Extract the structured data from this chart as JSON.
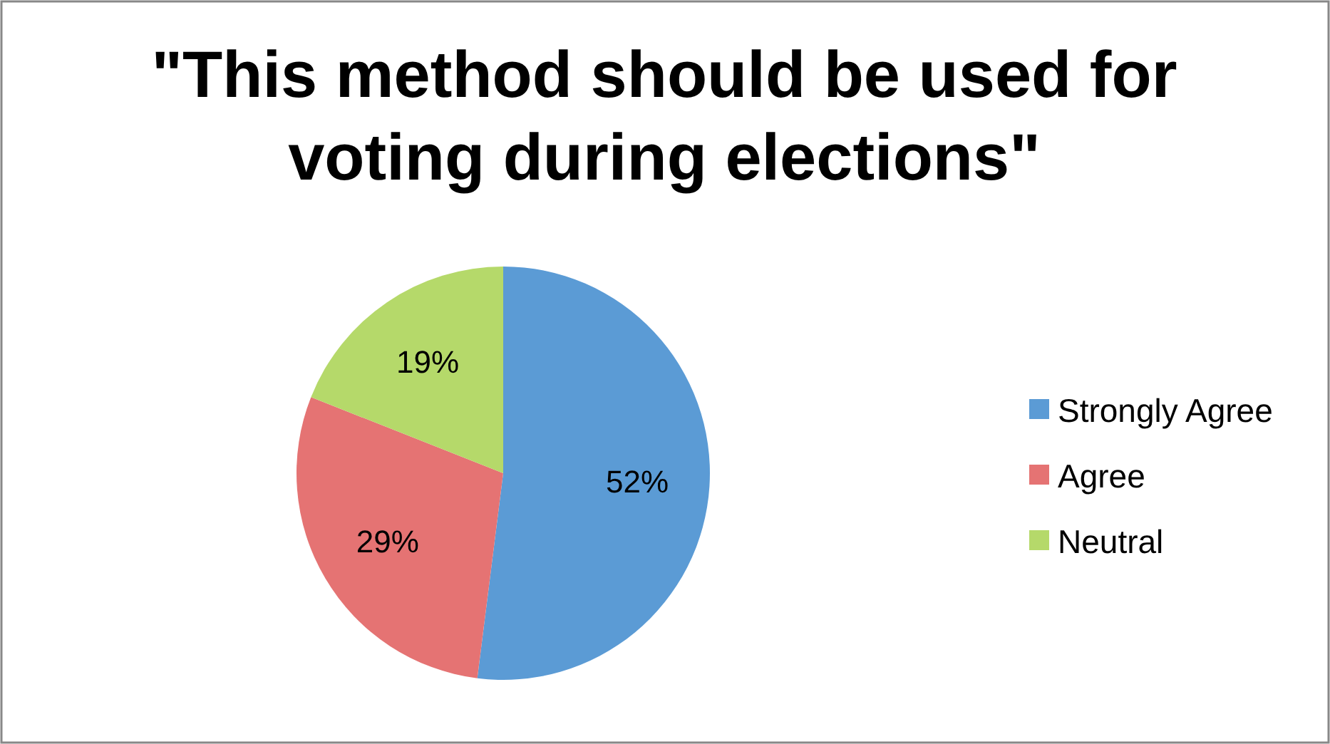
{
  "chart_data": {
    "type": "pie",
    "title": "\"This method should be used for voting during elections\"",
    "categories": [
      "Strongly Agree",
      "Agree",
      "Neutral"
    ],
    "values": [
      52,
      29,
      19
    ],
    "colors": [
      "#5b9bd5",
      "#e57373",
      "#b5d96a"
    ],
    "value_labels": [
      "52%",
      "29%",
      "19%"
    ],
    "legend": "right"
  }
}
